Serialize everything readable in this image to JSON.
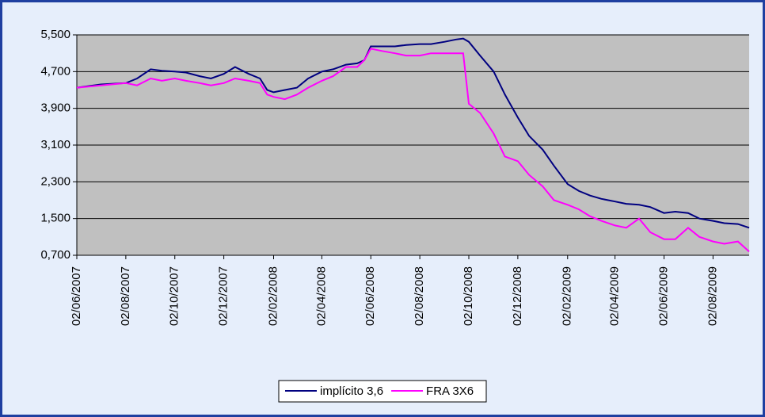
{
  "chart_data": {
    "type": "line",
    "x": [
      "02/06/2007",
      "02/07/2007",
      "02/08/2007",
      "16/08/2007",
      "02/09/2007",
      "16/09/2007",
      "02/10/2007",
      "16/10/2007",
      "02/11/2007",
      "16/11/2007",
      "02/12/2007",
      "16/12/2007",
      "02/01/2008",
      "16/01/2008",
      "25/01/2008",
      "02/02/2008",
      "16/02/2008",
      "02/03/2008",
      "16/03/2008",
      "02/04/2008",
      "16/04/2008",
      "02/05/2008",
      "16/05/2008",
      "25/05/2008",
      "02/06/2008",
      "16/06/2008",
      "02/07/2008",
      "16/07/2008",
      "02/08/2008",
      "16/08/2008",
      "02/09/2008",
      "16/09/2008",
      "25/09/2008",
      "02/10/2008",
      "16/10/2008",
      "02/11/2008",
      "16/11/2008",
      "02/12/2008",
      "16/12/2008",
      "02/01/2009",
      "16/01/2009",
      "02/02/2009",
      "16/02/2009",
      "02/03/2009",
      "16/03/2009",
      "02/04/2009",
      "16/04/2009",
      "02/05/2009",
      "16/05/2009",
      "02/06/2009",
      "16/06/2009",
      "02/07/2009",
      "16/07/2009",
      "02/08/2009",
      "16/08/2009",
      "02/09/2009",
      "16/09/2009"
    ],
    "series": [
      {
        "name": "implícito 3,6",
        "color": "#000080",
        "values": [
          4.35,
          4.42,
          4.45,
          4.55,
          4.75,
          4.72,
          4.7,
          4.68,
          4.6,
          4.55,
          4.65,
          4.8,
          4.65,
          4.55,
          4.3,
          4.25,
          4.3,
          4.35,
          4.55,
          4.7,
          4.75,
          4.85,
          4.88,
          4.95,
          5.25,
          5.25,
          5.25,
          5.28,
          5.3,
          5.3,
          5.35,
          5.4,
          5.42,
          5.35,
          5.05,
          4.7,
          4.2,
          3.7,
          3.3,
          3.0,
          2.65,
          2.25,
          2.1,
          2.0,
          1.93,
          1.87,
          1.82,
          1.8,
          1.75,
          1.62,
          1.65,
          1.62,
          1.5,
          1.45,
          1.4,
          1.38,
          1.3
        ]
      },
      {
        "name": "FRA 3X6",
        "color": "#ff00ff",
        "values": [
          4.35,
          4.4,
          4.45,
          4.4,
          4.55,
          4.5,
          4.55,
          4.5,
          4.45,
          4.4,
          4.45,
          4.55,
          4.5,
          4.45,
          4.2,
          4.15,
          4.1,
          4.2,
          4.35,
          4.5,
          4.6,
          4.8,
          4.8,
          4.95,
          5.2,
          5.15,
          5.1,
          5.05,
          5.05,
          5.1,
          5.1,
          5.1,
          5.1,
          4.0,
          3.8,
          3.35,
          2.85,
          2.75,
          2.45,
          2.2,
          1.9,
          1.8,
          1.7,
          1.55,
          1.45,
          1.35,
          1.3,
          1.5,
          1.2,
          1.05,
          1.05,
          1.3,
          1.1,
          1.0,
          0.95,
          1.0,
          0.78
        ]
      }
    ],
    "xlim": [
      "02/06/2007",
      "16/09/2009"
    ],
    "xticks": [
      "02/06/2007",
      "02/08/2007",
      "02/10/2007",
      "02/12/2007",
      "02/02/2008",
      "02/04/2008",
      "02/06/2008",
      "02/08/2008",
      "02/10/2008",
      "02/12/2008",
      "02/02/2009",
      "02/04/2009",
      "02/06/2009",
      "02/08/2009"
    ],
    "ylim": [
      0.7,
      5.5
    ],
    "yticks": [
      {
        "value": 0.7,
        "label": "0,700"
      },
      {
        "value": 1.5,
        "label": "1,500"
      },
      {
        "value": 2.3,
        "label": "2,300"
      },
      {
        "value": 3.1,
        "label": "3,100"
      },
      {
        "value": 3.9,
        "label": "3,900"
      },
      {
        "value": 4.7,
        "label": "4,700"
      },
      {
        "value": 5.5,
        "label": "5,500"
      }
    ],
    "grid": true,
    "legend": "bottom"
  }
}
